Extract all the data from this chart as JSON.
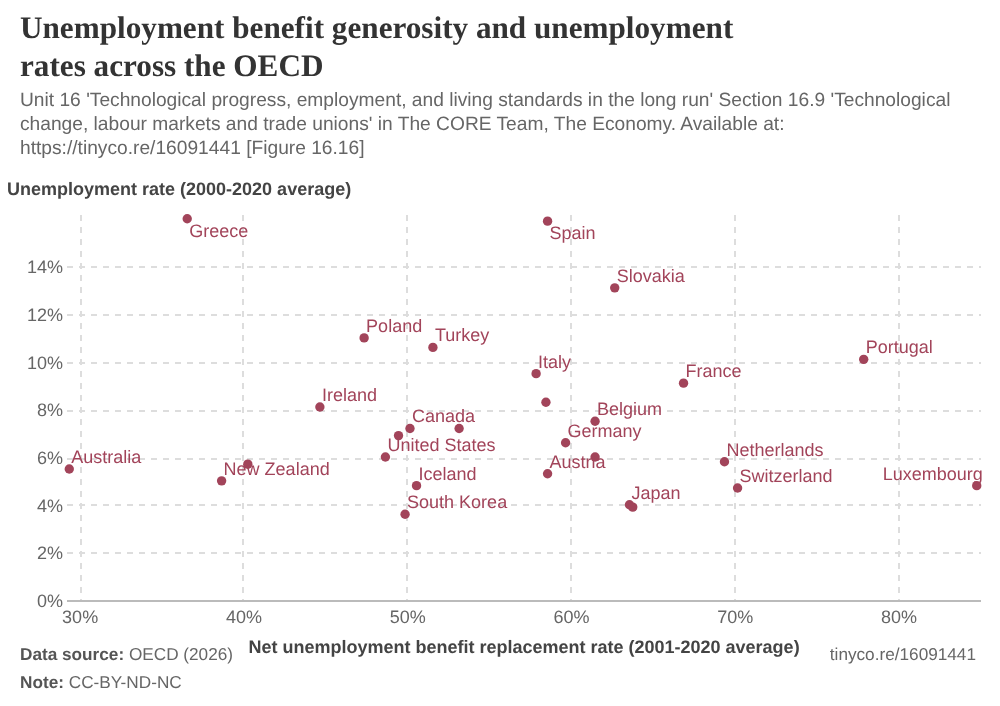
{
  "chart_data": {
    "type": "scatter",
    "title": "Unemployment benefit generosity and unemployment rates across the OECD",
    "subtitle": "Unit 16 'Technological progress, employment, and living standards in the long run' Section 16.9 'Technological change, labour markets and trade unions' in The CORE Team, The Economy. Available at: https://tinyco.re/16091441 [Figure 16.16]",
    "xlabel": "Net unemployment benefit replacement rate (2001-2020 average)",
    "ylabel": "Unemployment rate (2000-2020 average)",
    "xlim": [
      29.2,
      85
    ],
    "ylim": [
      0,
      16.2
    ],
    "xticks": [
      {
        "value": 30,
        "label": "30%"
      },
      {
        "value": 40,
        "label": "40%"
      },
      {
        "value": 50,
        "label": "50%"
      },
      {
        "value": 60,
        "label": "60%"
      },
      {
        "value": 70,
        "label": "70%"
      },
      {
        "value": 80,
        "label": "80%"
      }
    ],
    "yticks": [
      {
        "value": 0,
        "label": "0%"
      },
      {
        "value": 2,
        "label": "2%"
      },
      {
        "value": 4,
        "label": "4%"
      },
      {
        "value": 6,
        "label": "6%"
      },
      {
        "value": 8,
        "label": "8%"
      },
      {
        "value": 10,
        "label": "10%"
      },
      {
        "value": 12,
        "label": "12%"
      },
      {
        "value": 14,
        "label": "14%"
      }
    ],
    "grid": true,
    "marker": "circle",
    "legend": false,
    "series": [
      {
        "color": "#a2445a",
        "x": [
          36.6,
          58.6,
          62.7,
          47.4,
          51.6,
          77.9,
          57.9,
          66.9,
          58.5,
          44.7,
          61.5,
          50.2,
          53.2,
          49.5,
          59.7,
          48.7,
          61.5,
          69.4,
          40.3,
          29.4,
          58.6,
          38.7,
          50.6,
          84.8,
          70.2,
          63.6,
          63.8,
          49.9
        ],
        "values": [
          16.0,
          15.9,
          13.1,
          11.0,
          10.6,
          10.1,
          9.5,
          9.1,
          8.3,
          8.1,
          7.5,
          7.2,
          7.2,
          6.9,
          6.6,
          6.0,
          6.0,
          5.8,
          5.7,
          5.5,
          5.3,
          5.0,
          4.8,
          4.8,
          4.7,
          4.0,
          3.9,
          3.6
        ]
      }
    ],
    "annotations": [
      {
        "text": "Greece",
        "x": 36.6,
        "y": 16.0
      },
      {
        "text": "Spain",
        "x": 58.6,
        "y": 15.9
      },
      {
        "text": "Slovakia",
        "x": 62.7,
        "y": 13.1
      },
      {
        "text": "Poland",
        "x": 47.4,
        "y": 11.0
      },
      {
        "text": "Turkey",
        "x": 51.6,
        "y": 10.6
      },
      {
        "text": "Portugal",
        "x": 77.9,
        "y": 10.1
      },
      {
        "text": "Italy",
        "x": 57.9,
        "y": 9.5
      },
      {
        "text": "France",
        "x": 66.9,
        "y": 9.1
      },
      {
        "text": "Ireland",
        "x": 44.7,
        "y": 8.1
      },
      {
        "text": "Belgium",
        "x": 61.5,
        "y": 7.5
      },
      {
        "text": "Canada",
        "x": 50.2,
        "y": 7.2
      },
      {
        "text": "Germany",
        "x": 59.7,
        "y": 6.6
      },
      {
        "text": "United States",
        "x": 48.7,
        "y": 6.0
      },
      {
        "text": "Netherlands",
        "x": 69.4,
        "y": 5.8
      },
      {
        "text": "Australia",
        "x": 29.4,
        "y": 5.5
      },
      {
        "text": "Austria",
        "x": 58.6,
        "y": 5.3
      },
      {
        "text": "New Zealand",
        "x": 38.7,
        "y": 5.0
      },
      {
        "text": "Iceland",
        "x": 50.6,
        "y": 4.8
      },
      {
        "text": "Luxembourg",
        "x": 84.8,
        "y": 4.8
      },
      {
        "text": "Switzerland",
        "x": 70.2,
        "y": 4.7
      },
      {
        "text": "Japan",
        "x": 63.6,
        "y": 4.0
      },
      {
        "text": "South Korea",
        "x": 49.9,
        "y": 3.6
      },
      "Data source: OECD (2026)",
      "Note: CC-BY-ND-NC",
      "tinyco.re/16091441"
    ]
  }
}
